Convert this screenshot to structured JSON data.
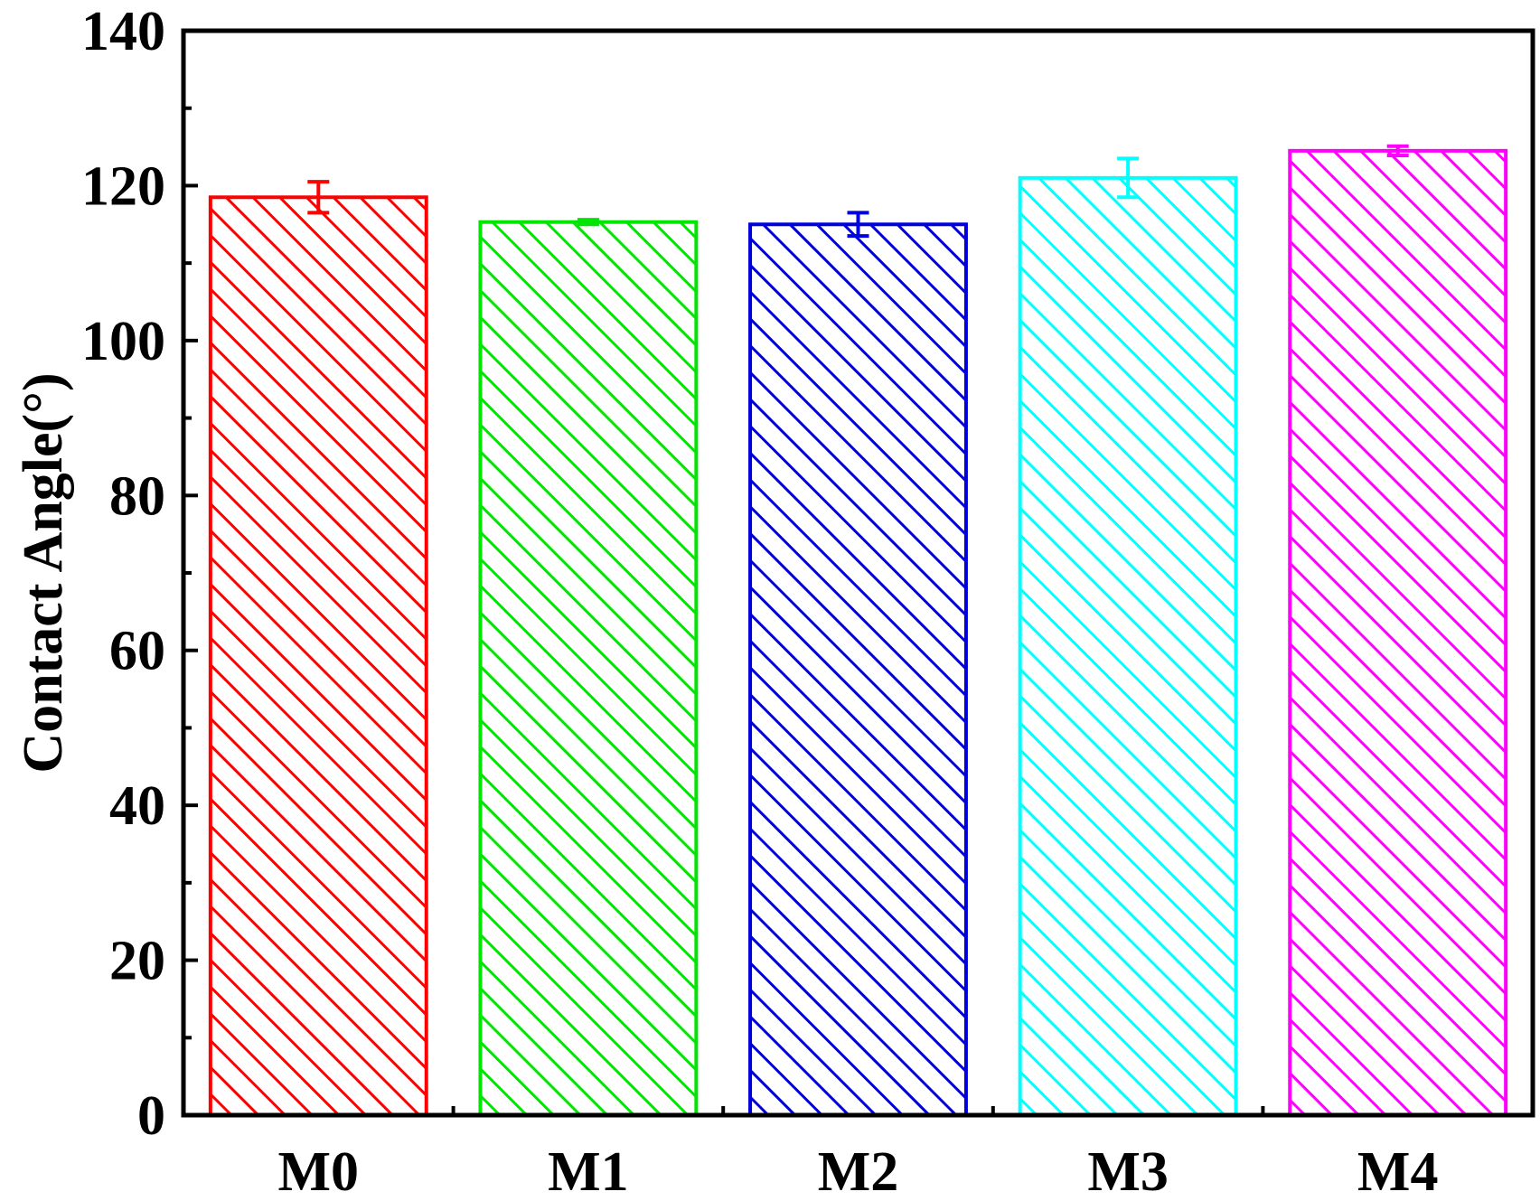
{
  "chart_data": {
    "type": "bar",
    "title": "",
    "xlabel": "",
    "ylabel": "Contact Angle(°)",
    "categories": [
      "M0",
      "M1",
      "M2",
      "M3",
      "M4"
    ],
    "values": [
      118.5,
      115.3,
      115.0,
      121.0,
      124.5
    ],
    "errors": [
      2.0,
      0.3,
      1.5,
      2.5,
      0.6
    ],
    "colors": [
      "#ff0000",
      "#00e600",
      "#0000dd",
      "#00ffff",
      "#ff00ff"
    ],
    "fill_pattern": "diagonal-hatch",
    "ylim": [
      0,
      140
    ],
    "yticks": [
      0,
      20,
      40,
      60,
      80,
      100,
      120,
      140
    ],
    "ytick_labels": [
      "0",
      "20",
      "40",
      "60",
      "80",
      "100",
      "120",
      "140"
    ],
    "grid": false,
    "legend": "none"
  }
}
